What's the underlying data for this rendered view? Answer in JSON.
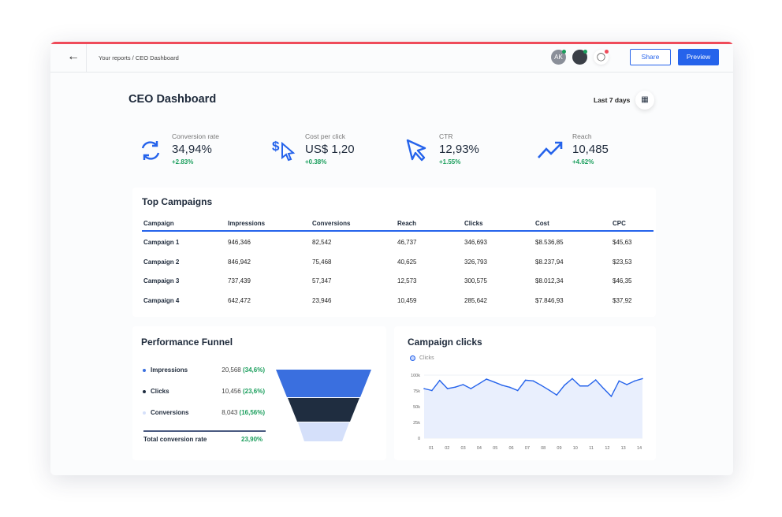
{
  "header": {
    "breadcrumb": "Your reports / CEO Dashboard",
    "avatar_initials": "AK",
    "share_label": "Share",
    "preview_label": "Preview"
  },
  "page": {
    "title": "CEO Dashboard",
    "date_range": "Last 7 days"
  },
  "kpis": [
    {
      "label": "Conversion rate",
      "value": "34,94%",
      "delta": "+2.83%",
      "icon": "refresh-icon"
    },
    {
      "label": "Cost per click",
      "value": "US$ 1,20",
      "delta": "+0.38%",
      "icon": "dollar-cursor-icon"
    },
    {
      "label": "CTR",
      "value": "12,93%",
      "delta": "+1.55%",
      "icon": "cursor-icon"
    },
    {
      "label": "Reach",
      "value": "10,485",
      "delta": "+4.62%",
      "icon": "trend-up-icon"
    }
  ],
  "campaigns": {
    "title": "Top Campaigns",
    "columns": [
      "Campaign",
      "Impressions",
      "Conversions",
      "Reach",
      "Clicks",
      "Cost",
      "CPC"
    ],
    "rows": [
      [
        "Campaign 1",
        "946,346",
        "82,542",
        "46,737",
        "346,693",
        "$8.536,85",
        "$45,63"
      ],
      [
        "Campaign 2",
        "846,942",
        "75,468",
        "40,625",
        "326,793",
        "$8.237,94",
        "$23,53"
      ],
      [
        "Campaign 3",
        "737,439",
        "57,347",
        "12,573",
        "300,575",
        "$8.012,34",
        "$46,35"
      ],
      [
        "Campaign 4",
        "642,472",
        "23,946",
        "10,459",
        "285,642",
        "$7.846,93",
        "$37,92"
      ]
    ]
  },
  "funnel": {
    "title": "Performance Funnel",
    "items": [
      {
        "label": "Impressions",
        "value": "20,568",
        "pct": "(34,6%)",
        "color": "#3a6fdf"
      },
      {
        "label": "Clicks",
        "value": "10,456",
        "pct": "(23,6%)",
        "color": "#1f2d40"
      },
      {
        "label": "Conversions",
        "value": "8,043",
        "pct": "(16,56%)",
        "color": "#d5e0fa"
      }
    ],
    "total_label": "Total conversion rate",
    "total_value": "23,90%"
  },
  "colors": {
    "accent": "#2563eb",
    "positive": "#1a9e5c",
    "alert": "#ef4b5a"
  },
  "chart_data": {
    "type": "area",
    "title": "Campaign clicks",
    "series": [
      {
        "name": "Clicks",
        "values": [
          78600,
          75600,
          91600,
          78600,
          81000,
          85000,
          78600,
          86000,
          93700,
          89000,
          84000,
          80700,
          75600,
          92000,
          90800,
          84000,
          76500,
          68500,
          84000,
          94500,
          82800,
          82800,
          92400,
          79000,
          66400,
          90800,
          85000,
          90800,
          94500
        ]
      }
    ],
    "x_tick_labels": [
      "01",
      "02",
      "03",
      "04",
      "05",
      "06",
      "07",
      "08",
      "09",
      "10",
      "11",
      "12",
      "13",
      "14"
    ],
    "y_tick_labels": [
      "0",
      "25k",
      "50k",
      "75k",
      "100k"
    ],
    "ylim": [
      0,
      100000
    ],
    "grid": true,
    "legend": "top-left",
    "color": "#2563eb"
  }
}
